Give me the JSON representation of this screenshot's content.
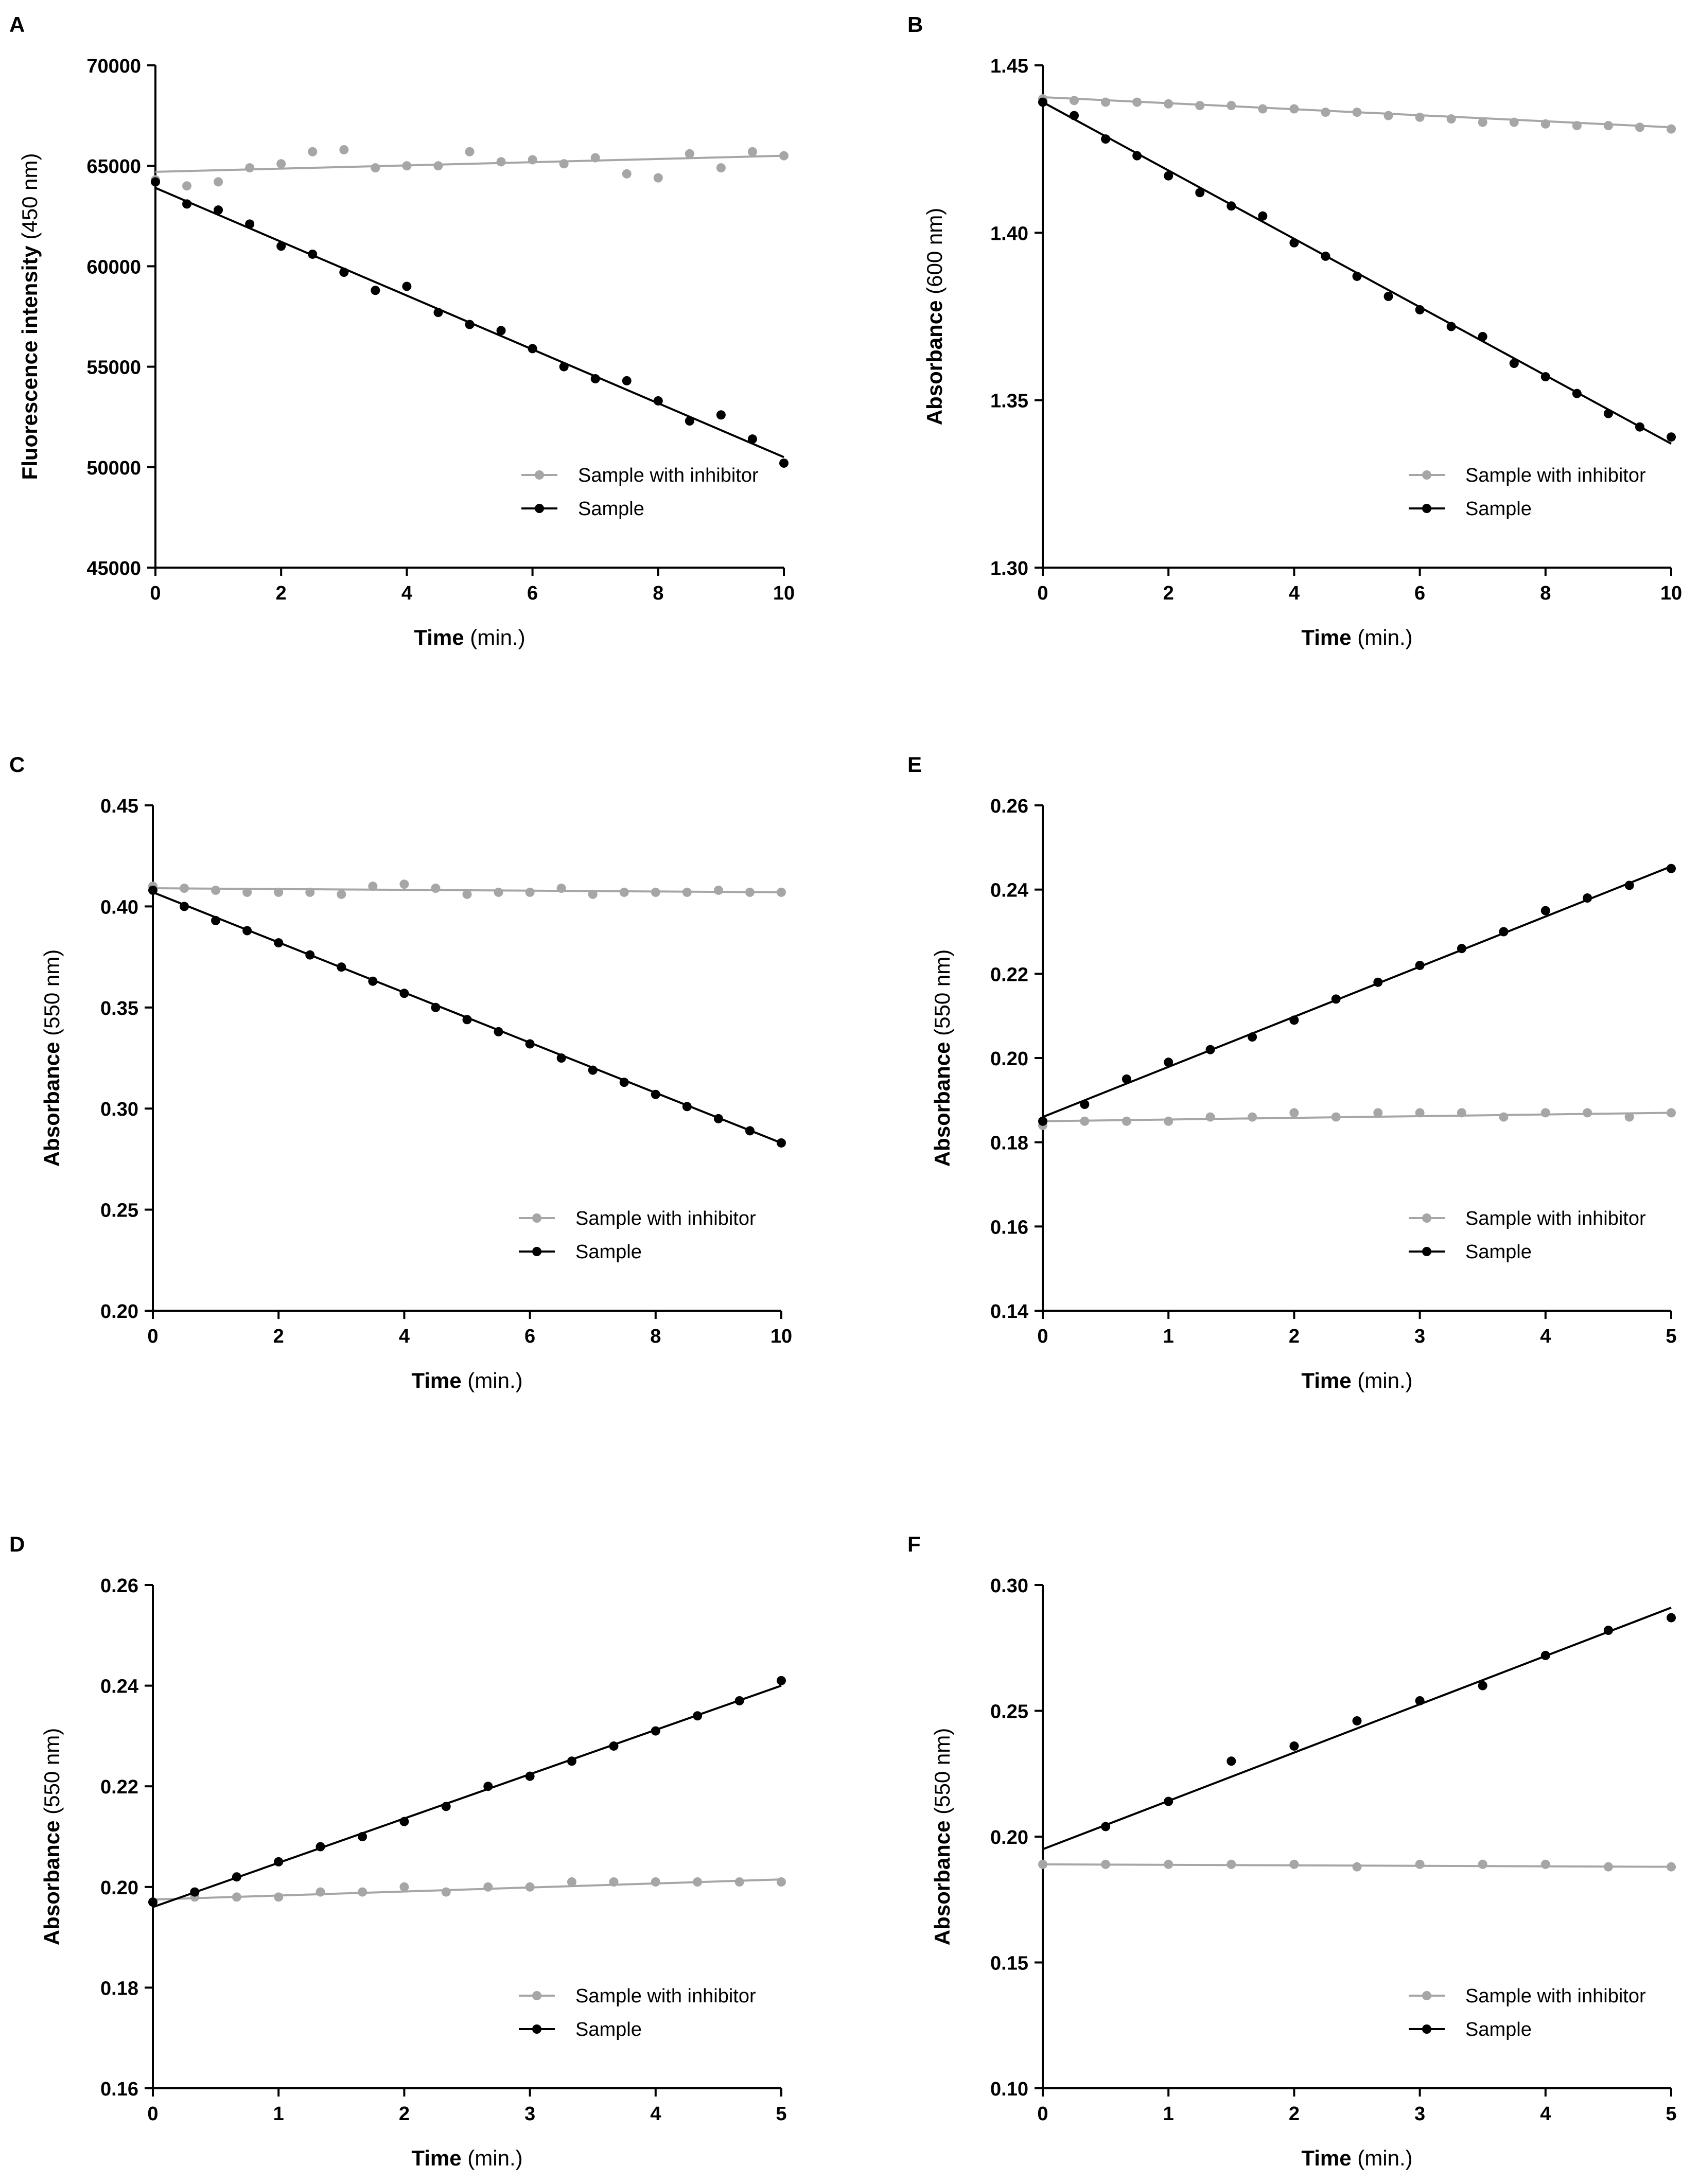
{
  "figure": {
    "panels": [
      {
        "letter": "A"
      },
      {
        "letter": "B"
      },
      {
        "letter": "C"
      },
      {
        "letter": "E"
      },
      {
        "letter": "D"
      },
      {
        "letter": "F"
      }
    ]
  },
  "colors": {
    "sample": "#000000",
    "inhibitor": "#a6a6a6",
    "axis": "#000000"
  },
  "chart_data": [
    {
      "type": "scatter",
      "panel": "A",
      "ylabel": "Fluorescence intensity",
      "ylabel_unit": " (450 nm)",
      "xlabel": "Time",
      "xlabel_unit": " (min.)",
      "xlim": [
        0,
        10
      ],
      "ylim": [
        45000,
        70000
      ],
      "xticks": [
        0,
        2,
        4,
        6,
        8,
        10
      ],
      "yticks": [
        45000,
        50000,
        55000,
        60000,
        65000,
        70000
      ],
      "ytick_labels": [
        "45000",
        "50000",
        "55000",
        "60000",
        "65000",
        "70000"
      ],
      "legend_position": "bottom-right",
      "series": [
        {
          "name": "Sample with inhibitor",
          "color_key": "inhibitor",
          "x": [
            0,
            0.5,
            1,
            1.5,
            2,
            2.5,
            3,
            3.5,
            4,
            4.5,
            5,
            5.5,
            6,
            6.5,
            7,
            7.5,
            8,
            8.5,
            9,
            9.5,
            10
          ],
          "y": [
            64300,
            64000,
            64200,
            64900,
            65100,
            65700,
            65800,
            64900,
            65000,
            65000,
            65700,
            65200,
            65300,
            65100,
            65400,
            64600,
            64400,
            65600,
            64900,
            65700,
            65500
          ],
          "fit": [
            64700,
            65500
          ]
        },
        {
          "name": "Sample",
          "color_key": "sample",
          "x": [
            0,
            0.5,
            1,
            1.5,
            2,
            2.5,
            3,
            3.5,
            4,
            4.5,
            5,
            5.5,
            6,
            6.5,
            7,
            7.5,
            8,
            8.5,
            9,
            9.5,
            10
          ],
          "y": [
            64200,
            63100,
            62800,
            62100,
            61000,
            60600,
            59700,
            58800,
            59000,
            57700,
            57100,
            56800,
            55900,
            55000,
            54400,
            54300,
            53300,
            52300,
            52600,
            51400,
            50200
          ],
          "fit": [
            63900,
            50500
          ]
        }
      ]
    },
    {
      "type": "scatter",
      "panel": "B",
      "ylabel": "Absorbance",
      "ylabel_unit": " (600 nm)",
      "xlabel": "Time",
      "xlabel_unit": " (min.)",
      "xlim": [
        0,
        10
      ],
      "ylim": [
        1.3,
        1.45
      ],
      "xticks": [
        0,
        2,
        4,
        6,
        8,
        10
      ],
      "yticks": [
        1.3,
        1.35,
        1.4,
        1.45
      ],
      "ytick_labels": [
        "1.30",
        "1.35",
        "1.40",
        "1.45"
      ],
      "legend_position": "bottom-right",
      "series": [
        {
          "name": "Sample with inhibitor",
          "color_key": "inhibitor",
          "x": [
            0,
            0.5,
            1,
            1.5,
            2,
            2.5,
            3,
            3.5,
            4,
            4.5,
            5,
            5.5,
            6,
            6.5,
            7,
            7.5,
            8,
            8.5,
            9,
            9.5,
            10
          ],
          "y": [
            1.44,
            1.4395,
            1.439,
            1.439,
            1.4385,
            1.438,
            1.438,
            1.437,
            1.437,
            1.436,
            1.436,
            1.435,
            1.4345,
            1.434,
            1.433,
            1.433,
            1.4325,
            1.432,
            1.432,
            1.4315,
            1.431
          ],
          "fit": [
            1.4405,
            1.4315
          ]
        },
        {
          "name": "Sample",
          "color_key": "sample",
          "x": [
            0,
            0.5,
            1,
            1.5,
            2,
            2.5,
            3,
            3.5,
            4,
            4.5,
            5,
            5.5,
            6,
            6.5,
            7,
            7.5,
            8,
            8.5,
            9,
            9.5,
            10
          ],
          "y": [
            1.439,
            1.435,
            1.428,
            1.423,
            1.417,
            1.412,
            1.408,
            1.405,
            1.397,
            1.393,
            1.387,
            1.381,
            1.377,
            1.372,
            1.369,
            1.361,
            1.357,
            1.352,
            1.346,
            1.342,
            1.339
          ],
          "fit": [
            1.439,
            1.337
          ]
        }
      ]
    },
    {
      "type": "scatter",
      "panel": "C",
      "ylabel": "Absorbance",
      "ylabel_unit": " (550 nm)",
      "xlabel": "Time",
      "xlabel_unit": " (min.)",
      "xlim": [
        0,
        10
      ],
      "ylim": [
        0.2,
        0.45
      ],
      "xticks": [
        0,
        2,
        4,
        6,
        8,
        10
      ],
      "yticks": [
        0.2,
        0.25,
        0.3,
        0.35,
        0.4,
        0.45
      ],
      "ytick_labels": [
        "0.20",
        "0.25",
        "0.30",
        "0.35",
        "0.40",
        "0.45"
      ],
      "legend_position": "bottom-right",
      "series": [
        {
          "name": "Sample with inhibitor",
          "color_key": "inhibitor",
          "x": [
            0,
            0.5,
            1,
            1.5,
            2,
            2.5,
            3,
            3.5,
            4,
            4.5,
            5,
            5.5,
            6,
            6.5,
            7,
            7.5,
            8,
            8.5,
            9,
            9.5,
            10
          ],
          "y": [
            0.41,
            0.409,
            0.408,
            0.407,
            0.407,
            0.407,
            0.406,
            0.41,
            0.411,
            0.409,
            0.406,
            0.407,
            0.407,
            0.409,
            0.406,
            0.407,
            0.407,
            0.407,
            0.408,
            0.407,
            0.407
          ],
          "fit": [
            0.409,
            0.407
          ]
        },
        {
          "name": "Sample",
          "color_key": "sample",
          "x": [
            0,
            0.5,
            1,
            1.5,
            2,
            2.5,
            3,
            3.5,
            4,
            4.5,
            5,
            5.5,
            6,
            6.5,
            7,
            7.5,
            8,
            8.5,
            9,
            9.5,
            10
          ],
          "y": [
            0.408,
            0.4,
            0.393,
            0.388,
            0.382,
            0.376,
            0.37,
            0.363,
            0.357,
            0.35,
            0.344,
            0.338,
            0.332,
            0.325,
            0.319,
            0.313,
            0.307,
            0.301,
            0.295,
            0.289,
            0.283
          ],
          "fit": [
            0.407,
            0.283
          ]
        }
      ]
    },
    {
      "type": "scatter",
      "panel": "E",
      "ylabel": "Absorbance",
      "ylabel_unit": " (550 nm)",
      "xlabel": "Time",
      "xlabel_unit": " (min.)",
      "xlim": [
        0,
        5
      ],
      "ylim": [
        0.14,
        0.26
      ],
      "xticks": [
        0,
        1,
        2,
        3,
        4,
        5
      ],
      "yticks": [
        0.14,
        0.16,
        0.18,
        0.2,
        0.22,
        0.24,
        0.26
      ],
      "ytick_labels": [
        "0.14",
        "0.16",
        "0.18",
        "0.20",
        "0.22",
        "0.24",
        "0.26"
      ],
      "legend_position": "bottom-right",
      "series": [
        {
          "name": "Sample with inhibitor",
          "color_key": "inhibitor",
          "x": [
            0,
            0.333,
            0.667,
            1,
            1.333,
            1.667,
            2,
            2.333,
            2.667,
            3,
            3.333,
            3.667,
            4,
            4.333,
            4.667,
            5
          ],
          "y": [
            0.184,
            0.185,
            0.185,
            0.185,
            0.186,
            0.186,
            0.187,
            0.186,
            0.187,
            0.187,
            0.187,
            0.186,
            0.187,
            0.187,
            0.186,
            0.187
          ],
          "fit": [
            0.185,
            0.187
          ]
        },
        {
          "name": "Sample",
          "color_key": "sample",
          "x": [
            0,
            0.333,
            0.667,
            1,
            1.333,
            1.667,
            2,
            2.333,
            2.667,
            3,
            3.333,
            3.667,
            4,
            4.333,
            4.667,
            5
          ],
          "y": [
            0.185,
            0.189,
            0.195,
            0.199,
            0.202,
            0.205,
            0.209,
            0.214,
            0.218,
            0.222,
            0.226,
            0.23,
            0.235,
            0.238,
            0.241,
            0.245
          ],
          "fit": [
            0.186,
            0.2455
          ]
        }
      ]
    },
    {
      "type": "scatter",
      "panel": "D",
      "ylabel": "Absorbance",
      "ylabel_unit": " (550 nm)",
      "xlabel": "Time",
      "xlabel_unit": " (min.)",
      "xlim": [
        0,
        5
      ],
      "ylim": [
        0.16,
        0.26
      ],
      "xticks": [
        0,
        1,
        2,
        3,
        4,
        5
      ],
      "yticks": [
        0.16,
        0.18,
        0.2,
        0.22,
        0.24,
        0.26
      ],
      "ytick_labels": [
        "0.16",
        "0.18",
        "0.20",
        "0.22",
        "0.24",
        "0.26"
      ],
      "legend_position": "bottom-right",
      "series": [
        {
          "name": "Sample with inhibitor",
          "color_key": "inhibitor",
          "x": [
            0,
            0.333,
            0.667,
            1,
            1.333,
            1.667,
            2,
            2.333,
            2.667,
            3,
            3.333,
            3.667,
            4,
            4.333,
            4.667,
            5
          ],
          "y": [
            0.197,
            0.198,
            0.198,
            0.198,
            0.199,
            0.199,
            0.2,
            0.199,
            0.2,
            0.2,
            0.201,
            0.201,
            0.201,
            0.201,
            0.201,
            0.201
          ],
          "fit": [
            0.1975,
            0.2015
          ]
        },
        {
          "name": "Sample",
          "color_key": "sample",
          "x": [
            0,
            0.333,
            0.667,
            1,
            1.333,
            1.667,
            2,
            2.333,
            2.667,
            3,
            3.333,
            3.667,
            4,
            4.333,
            4.667,
            5
          ],
          "y": [
            0.197,
            0.199,
            0.202,
            0.205,
            0.208,
            0.21,
            0.213,
            0.216,
            0.22,
            0.222,
            0.225,
            0.228,
            0.231,
            0.234,
            0.237,
            0.241
          ],
          "fit": [
            0.196,
            0.24
          ]
        }
      ]
    },
    {
      "type": "scatter",
      "panel": "F",
      "ylabel": "Absorbance",
      "ylabel_unit": " (550 nm)",
      "xlabel": "Time",
      "xlabel_unit": " (min.)",
      "xlim": [
        0,
        5
      ],
      "ylim": [
        0.1,
        0.3
      ],
      "xticks": [
        0,
        1,
        2,
        3,
        4,
        5
      ],
      "yticks": [
        0.1,
        0.15,
        0.2,
        0.25,
        0.3
      ],
      "ytick_labels": [
        "0.10",
        "0.15",
        "0.20",
        "0.25",
        "0.30"
      ],
      "legend_position": "bottom-right",
      "series": [
        {
          "name": "Sample with inhibitor",
          "color_key": "inhibitor",
          "x": [
            0,
            0.5,
            1,
            1.5,
            2,
            2.5,
            3,
            3.5,
            4,
            4.5,
            5
          ],
          "y": [
            0.189,
            0.189,
            0.189,
            0.189,
            0.189,
            0.188,
            0.189,
            0.189,
            0.189,
            0.188,
            0.188
          ],
          "fit": [
            0.189,
            0.188
          ]
        },
        {
          "name": "Sample",
          "color_key": "sample",
          "x": [
            0.5,
            1,
            1.5,
            2,
            2.5,
            3,
            3.5,
            4,
            4.5,
            5
          ],
          "y": [
            0.204,
            0.214,
            0.23,
            0.236,
            0.246,
            0.254,
            0.26,
            0.272,
            0.282,
            0.287
          ],
          "fit": [
            0.195,
            0.291
          ]
        }
      ]
    }
  ]
}
